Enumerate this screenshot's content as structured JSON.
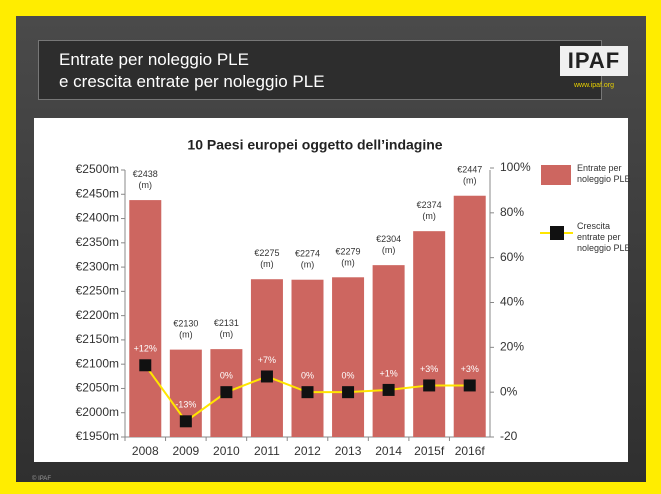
{
  "header": {
    "title_lines": [
      "Entrate per noleggio PLE",
      "e crescita entrate per noleggio PLE"
    ],
    "logo": "IPAF",
    "url": "www.ipaf.org"
  },
  "footer": "© IPAF",
  "chart_data": {
    "type": "bar",
    "title": "10 Paesi europei oggetto dell’indagine",
    "categories": [
      "2008",
      "2009",
      "2010",
      "2011",
      "2012",
      "2013",
      "2014",
      "2015f",
      "2016f"
    ],
    "series": [
      {
        "name": "Entrate per noleggio PLE",
        "color": "#cd6660",
        "type": "bar",
        "values": [
          2438,
          2130,
          2131,
          2275,
          2274,
          2279,
          2304,
          2374,
          2447
        ],
        "value_labels": [
          "€2438 (m)",
          "€2130 (m)",
          "€2131 (m)",
          "€2275 (m)",
          "€2274 (m)",
          "€2279 (m)",
          "€2304 (m)",
          "€2374 (m)",
          "€2447 (m)"
        ]
      },
      {
        "name": "Crescita entrate per noleggio PLE",
        "color": "#ffe600",
        "type": "line",
        "axis": "y2",
        "values": [
          12,
          -13,
          0,
          7,
          0,
          0,
          1,
          3,
          3
        ],
        "value_labels": [
          "+12%",
          "-13%",
          "0%",
          "+7%",
          "0%",
          "0%",
          "+1%",
          "+3%",
          "+3%"
        ]
      }
    ],
    "ylim": [
      1950,
      2500
    ],
    "yticks": [
      {
        "value": 1950,
        "label": "€1950m"
      },
      {
        "value": 2000,
        "label": "€2000m"
      },
      {
        "value": 2050,
        "label": "€2050m"
      },
      {
        "value": 2100,
        "label": "€2100m"
      },
      {
        "value": 2150,
        "label": "€2150m"
      },
      {
        "value": 2200,
        "label": "€2200m"
      },
      {
        "value": 2250,
        "label": "€2250m"
      },
      {
        "value": 2300,
        "label": "€2300m"
      },
      {
        "value": 2350,
        "label": "€2350m"
      },
      {
        "value": 2400,
        "label": "€2400m"
      },
      {
        "value": 2450,
        "label": "€2450m"
      },
      {
        "value": 2500,
        "label": "€2500m"
      }
    ],
    "y2lim": [
      -20,
      100
    ],
    "y2ticks": [
      -20,
      {
        "value": 0,
        "label": "0%"
      },
      {
        "value": 20,
        "label": "20%"
      },
      {
        "value": 40,
        "label": "40%"
      },
      {
        "value": 60,
        "label": "60%"
      },
      {
        "value": 80,
        "label": "80%"
      },
      {
        "value": 100,
        "label": "100%"
      }
    ],
    "legend": "right"
  }
}
